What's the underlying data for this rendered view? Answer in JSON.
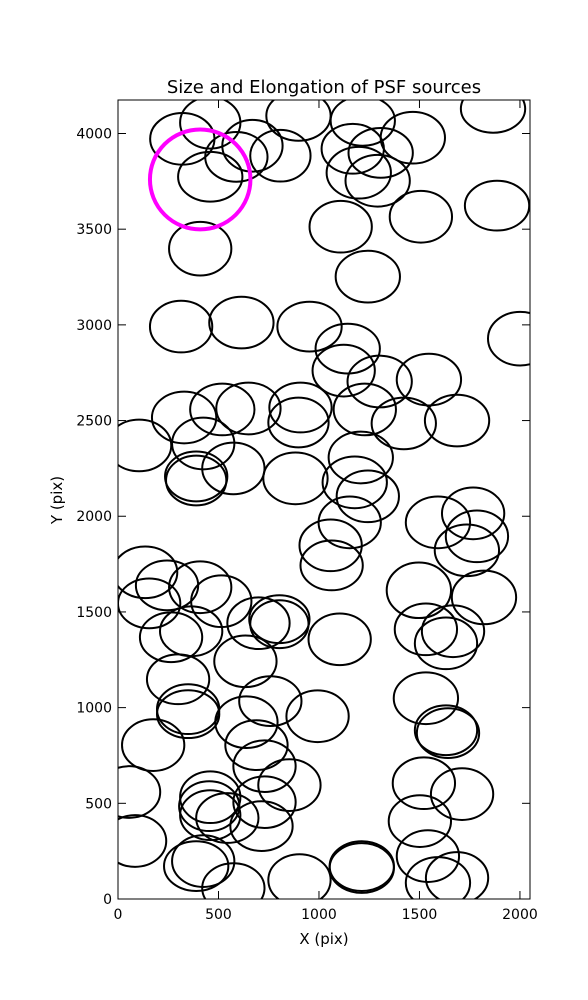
{
  "chart_data": {
    "type": "ellipse",
    "title": "Size and Elongation of PSF sources",
    "x_label": "X (pix)",
    "y_label": "Y (pix)",
    "xlim": [
      0,
      2050
    ],
    "ylim": [
      0,
      4175
    ],
    "xticks": [
      0,
      500,
      1000,
      1500,
      2000
    ],
    "yticks": [
      0,
      500,
      1000,
      1500,
      2000,
      2500,
      3000,
      3500,
      4000
    ],
    "grid": false,
    "series": [
      {
        "color": "#000000",
        "x": [
          320,
          459,
          669,
          589,
          808,
          898,
          1218,
          1168,
          1307,
          1467,
          1866,
          459,
          1198,
          1292,
          1108,
          1507,
          1886,
          409,
          1243,
          314,
          614,
          953,
          1143,
          1123,
          1302,
          1547,
          2001,
          1228,
          908,
          898,
          649,
          519,
          329,
          105,
          424,
          574,
          389,
          389,
          883,
          1422,
          1687,
          1208,
          1178,
          1243,
          1153,
          1058,
          1063,
          1592,
          1767,
          1786,
          1736,
          135,
          244,
          155,
          409,
          514,
          264,
          364,
          699,
          803,
          803,
          1103,
          1497,
          1821,
          1532,
          1667,
          1632,
          634,
          299,
          349,
          349,
          758,
          639,
          993,
          175,
          689,
          729,
          1532,
          1632,
          1642,
          55,
          85,
          459,
          454,
          459,
          544,
          729,
          853,
          714,
          1522,
          1712,
          1502,
          1542,
          424,
          389,
          574,
          903,
          1213,
          1213,
          1592,
          1687
        ],
        "y": [
          3972,
          4056,
          3936,
          3878,
          3884,
          4092,
          4066,
          3920,
          3899,
          3978,
          4129,
          3774,
          3795,
          3753,
          3513,
          3565,
          3623,
          3398,
          3252,
          2991,
          3012,
          2991,
          2876,
          2761,
          2704,
          2714,
          2928,
          2558,
          2568,
          2490,
          2563,
          2558,
          2516,
          2370,
          2380,
          2250,
          2208,
          2187,
          2198,
          2485,
          2500,
          2307,
          2177,
          2104,
          1968,
          1848,
          1743,
          1968,
          2015,
          1895,
          1822,
          1707,
          1639,
          1545,
          1629,
          1556,
          1368,
          1399,
          1441,
          1462,
          1436,
          1357,
          1613,
          1576,
          1409,
          1399,
          1336,
          1242,
          1148,
          992,
          966,
          1034,
          924,
          955,
          804,
          804,
          694,
          1049,
          882,
          867,
          559,
          303,
          532,
          485,
          438,
          423,
          506,
          595,
          381,
          605,
          548,
          407,
          224,
          198,
          172,
          57,
          99,
          172,
          162,
          84,
          110
        ],
        "width": [
          320,
          300,
          300,
          310,
          300,
          320,
          320,
          310,
          320,
          320,
          320,
          320,
          320,
          320,
          310,
          310,
          320,
          310,
          320,
          310,
          320,
          320,
          320,
          310,
          320,
          320,
          320,
          310,
          310,
          300,
          320,
          320,
          320,
          320,
          310,
          310,
          310,
          300,
          320,
          320,
          320,
          320,
          320,
          310,
          310,
          310,
          310,
          320,
          310,
          310,
          320,
          320,
          310,
          310,
          310,
          300,
          310,
          310,
          310,
          300,
          290,
          310,
          320,
          320,
          310,
          310,
          310,
          310,
          310,
          310,
          310,
          310,
          310,
          310,
          310,
          310,
          310,
          320,
          310,
          310,
          310,
          310,
          300,
          300,
          300,
          310,
          310,
          310,
          310,
          310,
          310,
          310,
          310,
          310,
          320,
          310,
          310,
          320,
          320,
          320,
          310
        ],
        "height": [
          270,
          270,
          270,
          260,
          270,
          260,
          260,
          260,
          260,
          270,
          250,
          260,
          270,
          270,
          270,
          270,
          260,
          280,
          270,
          270,
          270,
          260,
          260,
          270,
          270,
          270,
          280,
          270,
          260,
          260,
          270,
          270,
          270,
          270,
          270,
          270,
          260,
          260,
          270,
          270,
          270,
          270,
          270,
          270,
          270,
          270,
          260,
          270,
          270,
          270,
          270,
          270,
          260,
          260,
          270,
          270,
          260,
          260,
          270,
          250,
          250,
          270,
          290,
          280,
          270,
          270,
          270,
          270,
          260,
          260,
          250,
          260,
          270,
          270,
          270,
          260,
          270,
          270,
          260,
          260,
          270,
          270,
          270,
          260,
          260,
          260,
          270,
          270,
          260,
          270,
          270,
          270,
          270,
          270,
          260,
          260,
          270,
          260,
          260,
          270,
          270
        ]
      },
      {
        "color": "#ff00ff",
        "x": [
          409
        ],
        "y": [
          3760
        ],
        "width": [
          500
        ],
        "height": [
          522
        ]
      }
    ]
  }
}
